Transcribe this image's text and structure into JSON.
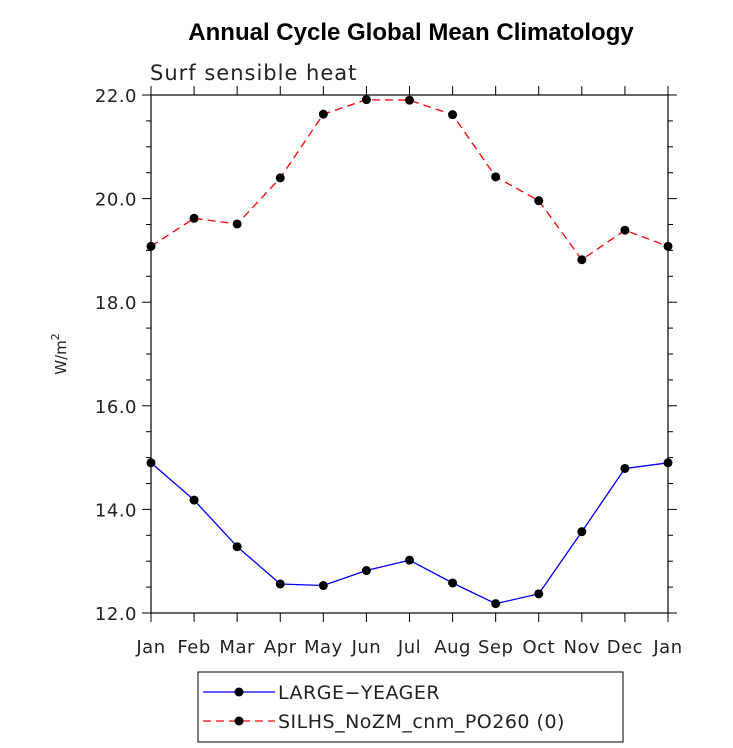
{
  "chart_data": {
    "type": "line",
    "title": "Annual Cycle Global Mean Climatology",
    "subtitle": "Surf sensible heat",
    "xlabel": "",
    "ylabel": "W/m",
    "ylabel_superscript": "2",
    "ylim": [
      12.0,
      22.0
    ],
    "yticks": [
      "12.0",
      "14.0",
      "16.0",
      "18.0",
      "20.0",
      "22.0"
    ],
    "ytick_values": [
      12,
      14,
      16,
      18,
      20,
      22
    ],
    "categories": [
      "Jan",
      "Feb",
      "Mar",
      "Apr",
      "May",
      "Jun",
      "Jul",
      "Aug",
      "Sep",
      "Oct",
      "Nov",
      "Dec",
      "Jan"
    ],
    "series": [
      {
        "name": "LARGE−YEAGER",
        "color": "#0000ff",
        "dash": "solid",
        "values": [
          14.9,
          14.18,
          13.28,
          12.56,
          12.53,
          12.82,
          13.02,
          12.58,
          12.18,
          12.37,
          13.57,
          14.79,
          14.9
        ]
      },
      {
        "name": "SILHS_NoZM_cnm_PO260 (0)",
        "color": "#ff0000",
        "dash": "dashed",
        "values": [
          19.08,
          19.62,
          19.51,
          20.4,
          21.63,
          21.91,
          21.9,
          21.62,
          20.42,
          19.96,
          18.82,
          19.39,
          19.08
        ]
      }
    ]
  }
}
